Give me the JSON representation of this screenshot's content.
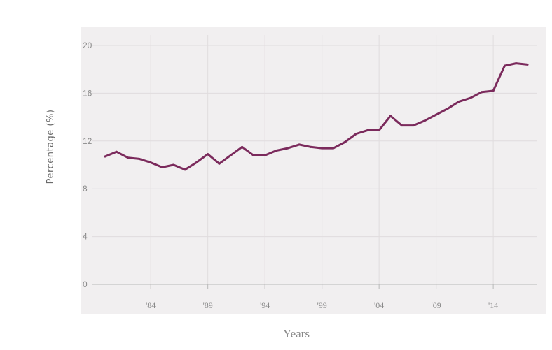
{
  "chart_data": {
    "type": "line",
    "xlabel": "Years",
    "ylabel": "Percentage (%)",
    "ylim": [
      0,
      20
    ],
    "yticks": [
      0,
      4,
      8,
      12,
      16,
      20
    ],
    "xticks": [
      {
        "year": 1984,
        "label": "'84"
      },
      {
        "year": 1989,
        "label": "'89"
      },
      {
        "year": 1994,
        "label": "'94"
      },
      {
        "year": 1999,
        "label": "'99"
      },
      {
        "year": 2004,
        "label": "'04"
      },
      {
        "year": 2009,
        "label": "'09"
      },
      {
        "year": 2014,
        "label": "'14"
      }
    ],
    "grid": true,
    "series": [
      {
        "color": "#7b2a5c",
        "points": [
          {
            "x": 1980,
            "y": 10.7
          },
          {
            "x": 1981,
            "y": 11.1
          },
          {
            "x": 1982,
            "y": 10.6
          },
          {
            "x": 1983,
            "y": 10.5
          },
          {
            "x": 1984,
            "y": 10.2
          },
          {
            "x": 1985,
            "y": 9.8
          },
          {
            "x": 1986,
            "y": 10.0
          },
          {
            "x": 1987,
            "y": 9.6
          },
          {
            "x": 1988,
            "y": 10.2
          },
          {
            "x": 1989,
            "y": 10.9
          },
          {
            "x": 1990,
            "y": 10.1
          },
          {
            "x": 1991,
            "y": 10.8
          },
          {
            "x": 1992,
            "y": 11.5
          },
          {
            "x": 1993,
            "y": 10.8
          },
          {
            "x": 1994,
            "y": 10.8
          },
          {
            "x": 1995,
            "y": 11.2
          },
          {
            "x": 1996,
            "y": 11.4
          },
          {
            "x": 1997,
            "y": 11.7
          },
          {
            "x": 1998,
            "y": 11.5
          },
          {
            "x": 1999,
            "y": 11.4
          },
          {
            "x": 2000,
            "y": 11.4
          },
          {
            "x": 2001,
            "y": 11.9
          },
          {
            "x": 2002,
            "y": 12.6
          },
          {
            "x": 2003,
            "y": 12.9
          },
          {
            "x": 2004,
            "y": 12.9
          },
          {
            "x": 2005,
            "y": 14.1
          },
          {
            "x": 2006,
            "y": 13.3
          },
          {
            "x": 2007,
            "y": 13.3
          },
          {
            "x": 2008,
            "y": 13.7
          },
          {
            "x": 2009,
            "y": 14.2
          },
          {
            "x": 2010,
            "y": 14.7
          },
          {
            "x": 2011,
            "y": 15.3
          },
          {
            "x": 2012,
            "y": 15.6
          },
          {
            "x": 2013,
            "y": 16.1
          },
          {
            "x": 2014,
            "y": 16.2
          },
          {
            "x": 2015,
            "y": 18.3
          },
          {
            "x": 2016,
            "y": 18.5
          },
          {
            "x": 2017,
            "y": 18.4
          }
        ]
      }
    ]
  }
}
